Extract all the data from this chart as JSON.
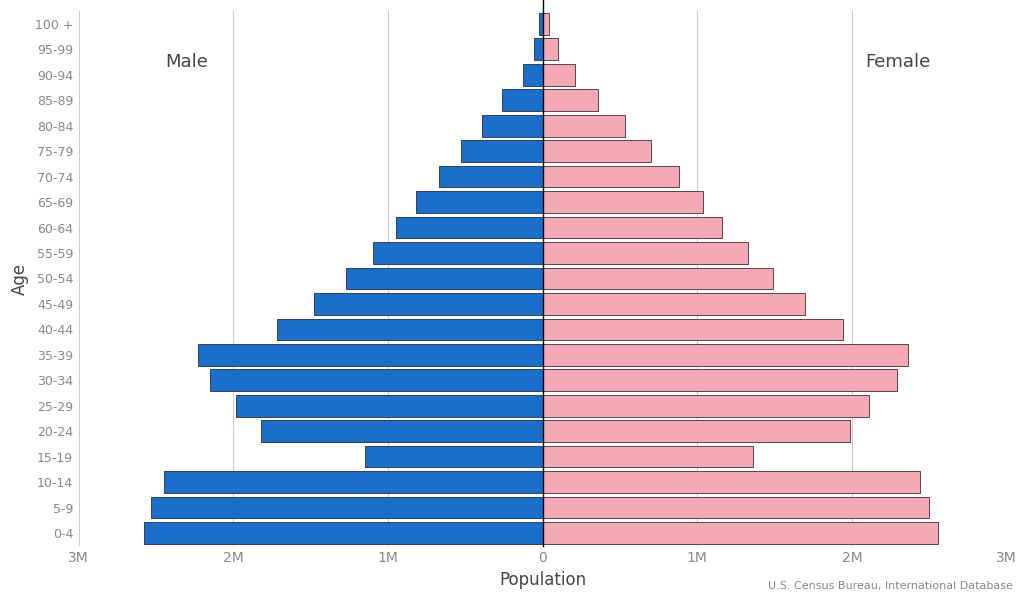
{
  "age_groups": [
    "0-4",
    "5-9",
    "10-14",
    "15-19",
    "20-24",
    "25-29",
    "30-34",
    "35-39",
    "40-44",
    "45-49",
    "50-54",
    "55-59",
    "60-64",
    "65-69",
    "70-74",
    "75-79",
    "80-84",
    "85-89",
    "90-94",
    "95-99",
    "100 +"
  ],
  "male": [
    2580000,
    2530000,
    2450000,
    1150000,
    1820000,
    1980000,
    2150000,
    2230000,
    1720000,
    1480000,
    1270000,
    1100000,
    950000,
    820000,
    670000,
    530000,
    390000,
    260000,
    130000,
    57000,
    25000
  ],
  "female": [
    2560000,
    2500000,
    2440000,
    1360000,
    1990000,
    2110000,
    2290000,
    2360000,
    1940000,
    1700000,
    1490000,
    1330000,
    1160000,
    1040000,
    880000,
    700000,
    530000,
    360000,
    210000,
    100000,
    40000
  ],
  "male_color": "#1a6fcd",
  "female_color": "#f4a9b4",
  "edge_color": "#111111",
  "bar_height": 0.85,
  "xlim": 3000000,
  "xtick_values": [
    -3000000,
    -2000000,
    -1000000,
    0,
    1000000,
    2000000,
    3000000
  ],
  "xtick_labels": [
    "3M",
    "2M",
    "1M",
    "0",
    "1M",
    "2M",
    "3M"
  ],
  "xlabel": "Population",
  "ylabel": "Age",
  "male_label": "Male",
  "female_label": "Female",
  "source_text": "U.S. Census Bureau, International Database",
  "grid_color": "#cccccc",
  "bg_color": "#ffffff",
  "text_color": "#888888",
  "label_color": "#444444"
}
